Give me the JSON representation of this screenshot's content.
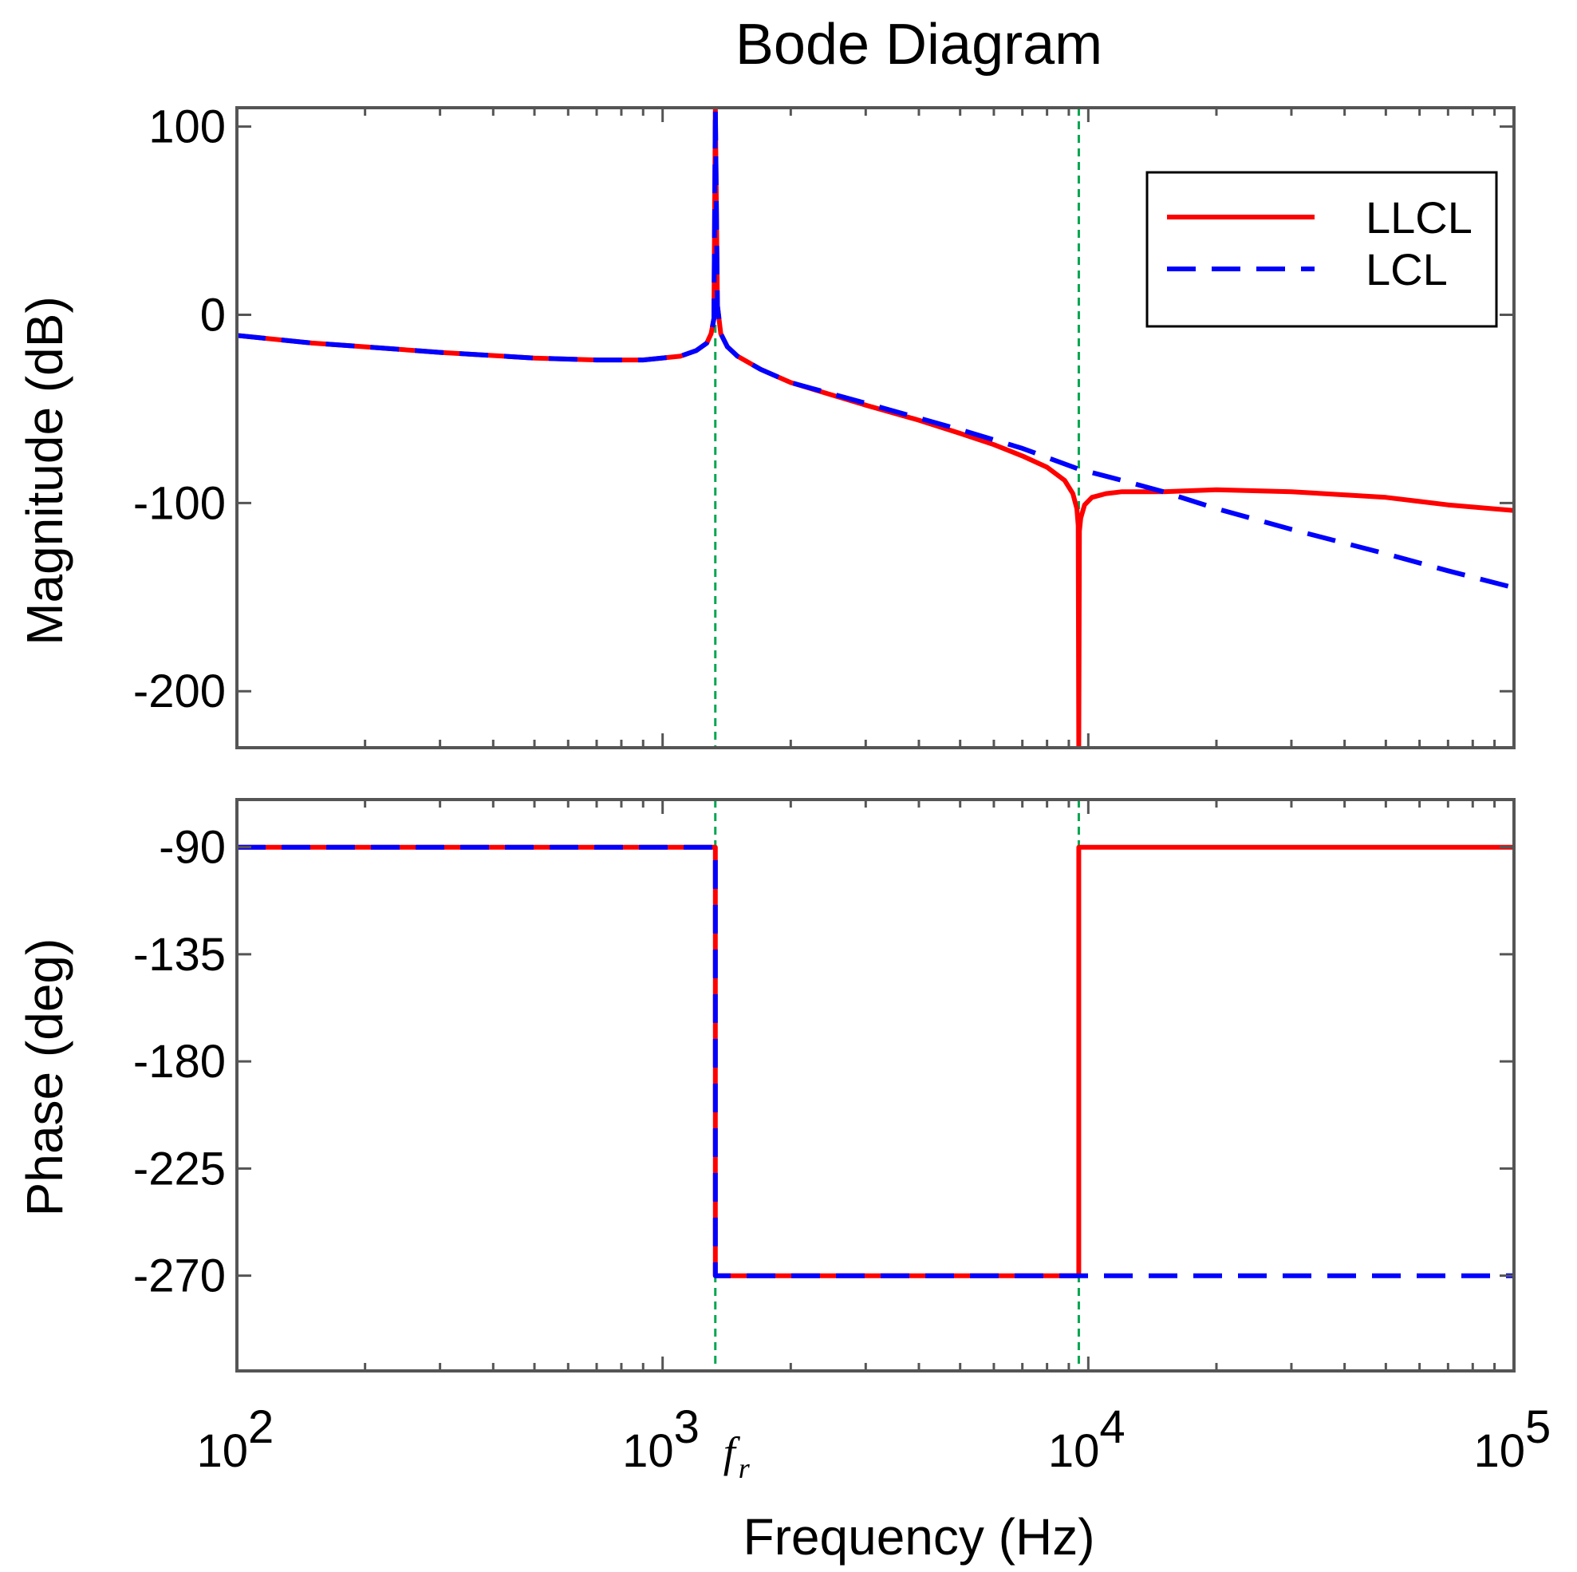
{
  "chart_data": {
    "type": "line",
    "title": "Bode Diagram",
    "xlabel": "Frequency  (Hz)",
    "xscale": "log",
    "xlim": [
      100,
      100000
    ],
    "x_ticks": [
      {
        "value": 100,
        "base": "10",
        "exp": "2"
      },
      {
        "value": 1000,
        "base": "10",
        "exp": "3"
      },
      {
        "value": 10000,
        "base": "10",
        "exp": "4"
      },
      {
        "value": 100000,
        "base": "10",
        "exp": "5"
      }
    ],
    "annotation": {
      "symbol": "f",
      "subscript": "r",
      "x": 1330
    },
    "reference_lines": [
      1330,
      9500
    ],
    "colors": {
      "LLCL": "#ff0000",
      "LCL": "#0000ff",
      "reference": "#00a650",
      "axes": "#555555"
    },
    "legend": {
      "location": "top-right",
      "entries": [
        "LLCL",
        "LCL"
      ]
    },
    "magnitude": {
      "ylabel": "Magnitude (dB)",
      "ylim": [
        -230,
        110
      ],
      "yticks": [
        100,
        0,
        -100,
        -200
      ],
      "ytick_labels": [
        "100",
        "0",
        "-100",
        "-200"
      ],
      "series": [
        {
          "name": "LLCL",
          "style": "solid",
          "x": [
            100,
            150,
            200,
            300,
            500,
            700,
            900,
            1100,
            1200,
            1270,
            1300,
            1320,
            1330,
            1345,
            1370,
            1420,
            1500,
            1700,
            2000,
            3000,
            4000,
            5000,
            6000,
            7000,
            8000,
            8800,
            9200,
            9400,
            9470,
            9500,
            9530,
            9600,
            9800,
            10200,
            11000,
            12000,
            15000,
            20000,
            30000,
            50000,
            70000,
            100000
          ],
          "y": [
            -11,
            -15,
            -17,
            -20,
            -23,
            -24,
            -24,
            -22,
            -19,
            -15,
            -10,
            -2,
            110,
            5,
            -10,
            -17,
            -22,
            -29,
            -36,
            -48,
            -56,
            -63,
            -69,
            -75,
            -81,
            -88,
            -95,
            -103,
            -112,
            -230,
            -115,
            -108,
            -101,
            -97,
            -95,
            -94,
            -94,
            -93,
            -94,
            -97,
            -101,
            -104
          ]
        },
        {
          "name": "LCL",
          "style": "dashed",
          "x": [
            100,
            150,
            200,
            300,
            500,
            700,
            900,
            1100,
            1200,
            1270,
            1300,
            1320,
            1330,
            1345,
            1370,
            1420,
            1500,
            1700,
            2000,
            3000,
            5000,
            7000,
            9500,
            12000,
            15000,
            20000,
            30000,
            50000,
            70000,
            100000
          ],
          "y": [
            -11,
            -15,
            -17,
            -20,
            -23,
            -24,
            -24,
            -22,
            -19,
            -15,
            -10,
            -2,
            110,
            5,
            -10,
            -17,
            -22,
            -29,
            -36,
            -47,
            -61,
            -71,
            -82,
            -88,
            -94,
            -103,
            -114,
            -127,
            -136,
            -145
          ]
        }
      ]
    },
    "phase": {
      "ylabel": "Phase (deg)",
      "ylim": [
        -310,
        -70
      ],
      "yticks": [
        -90,
        -135,
        -180,
        -225,
        -270
      ],
      "ytick_labels": [
        "-90",
        "-135",
        "-180",
        "-225",
        "-270"
      ],
      "series": [
        {
          "name": "LLCL",
          "style": "solid",
          "x": [
            100,
            1330,
            1330,
            9500,
            9500,
            100000
          ],
          "y": [
            -90,
            -90,
            -270,
            -270,
            -90,
            -90
          ]
        },
        {
          "name": "LCL",
          "style": "dashed",
          "x": [
            100,
            1330,
            1330,
            100000
          ],
          "y": [
            -90,
            -90,
            -270,
            -270
          ]
        }
      ]
    }
  }
}
